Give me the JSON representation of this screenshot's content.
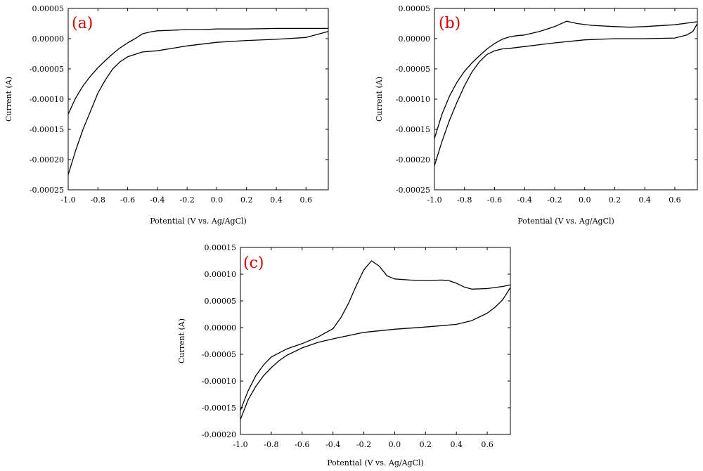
{
  "chart_data": [
    {
      "type": "line",
      "panel_label": "(a)",
      "xlabel": "Potential (V vs. Ag/AgCl)",
      "ylabel": "Current (A)",
      "xlim": [
        -1.0,
        0.75
      ],
      "ylim": [
        -0.00025,
        5e-05
      ],
      "x_ticks": [
        "-1.0",
        "-0.8",
        "-0.6",
        "-0.4",
        "-0.2",
        "0.0",
        "0.2",
        "0.4",
        "0.6"
      ],
      "x_tick_values": [
        -1.0,
        -0.8,
        -0.6,
        -0.4,
        -0.2,
        0.0,
        0.2,
        0.4,
        0.6
      ],
      "y_ticks": [
        "0.00005",
        "0.00000",
        "-0.00005",
        "-0.00010",
        "-0.00015",
        "-0.00020",
        "-0.00025"
      ],
      "y_tick_values": [
        5e-05,
        0.0,
        -5e-05,
        -0.0001,
        -0.00015,
        -0.0002,
        -0.00025
      ],
      "grid": false,
      "series": [
        {
          "x": [
            -1.0,
            -0.95,
            -0.9,
            -0.85,
            -0.8,
            -0.75,
            -0.7,
            -0.65,
            -0.6,
            -0.55,
            -0.5,
            -0.45,
            -0.4,
            -0.3,
            -0.2,
            -0.1,
            0.0,
            0.2,
            0.4,
            0.6,
            0.75
          ],
          "y": [
            -0.000125,
            -9.8e-05,
            -7.8e-05,
            -6.2e-05,
            -4.8e-05,
            -3.6e-05,
            -2.5e-05,
            -1.5e-05,
            -7e-06,
            0.0,
            8e-06,
            1.1e-05,
            1.3e-05,
            1.4e-05,
            1.5e-05,
            1.5e-05,
            1.6e-05,
            1.6e-05,
            1.7e-05,
            1.7e-05,
            1.7e-05
          ]
        },
        {
          "x": [
            0.75,
            0.6,
            0.4,
            0.2,
            0.0,
            -0.2,
            -0.4,
            -0.5,
            -0.55,
            -0.6,
            -0.65,
            -0.7,
            -0.75,
            -0.8,
            -0.85,
            -0.9,
            -0.95,
            -1.0
          ],
          "y": [
            1.2e-05,
            2e-06,
            -1e-06,
            -3e-06,
            -6e-06,
            -1.2e-05,
            -2e-05,
            -2.2e-05,
            -2.6e-05,
            -3e-05,
            -3.8e-05,
            -5e-05,
            -6.8e-05,
            -9e-05,
            -0.00012,
            -0.00015,
            -0.000185,
            -0.000225
          ]
        }
      ]
    },
    {
      "type": "line",
      "panel_label": "(b)",
      "xlabel": "Potential (V vs. Ag/AgCl)",
      "ylabel": "Current (A)",
      "xlim": [
        -1.0,
        0.75
      ],
      "ylim": [
        -0.00025,
        5e-05
      ],
      "x_ticks": [
        "-1.0",
        "-0.8",
        "-0.6",
        "-0.4",
        "-0.2",
        "0.0",
        "0.2",
        "0.4",
        "0.6"
      ],
      "x_tick_values": [
        -1.0,
        -0.8,
        -0.6,
        -0.4,
        -0.2,
        0.0,
        0.2,
        0.4,
        0.6
      ],
      "y_ticks": [
        "0.00005",
        "0.00000",
        "-0.00005",
        "-0.00010",
        "-0.00015",
        "-0.00020",
        "-0.00025"
      ],
      "y_tick_values": [
        5e-05,
        0.0,
        -5e-05,
        -0.0001,
        -0.00015,
        -0.0002,
        -0.00025
      ],
      "grid": false,
      "series": [
        {
          "x": [
            -1.0,
            -0.95,
            -0.9,
            -0.85,
            -0.8,
            -0.75,
            -0.7,
            -0.65,
            -0.6,
            -0.55,
            -0.5,
            -0.45,
            -0.4,
            -0.3,
            -0.2,
            -0.12,
            -0.05,
            0.05,
            0.2,
            0.3,
            0.4,
            0.6,
            0.75
          ],
          "y": [
            -0.000165,
            -0.000125,
            -9.5e-05,
            -7.2e-05,
            -5.4e-05,
            -4e-05,
            -2.8e-05,
            -1.7e-05,
            -8e-06,
            -1e-06,
            3e-06,
            5e-06,
            6e-06,
            1.2e-05,
            2e-05,
            2.9e-05,
            2.5e-05,
            2.2e-05,
            2e-05,
            1.9e-05,
            2e-05,
            2.3e-05,
            2.8e-05
          ]
        },
        {
          "x": [
            0.75,
            0.72,
            0.68,
            0.6,
            0.4,
            0.2,
            0.0,
            -0.2,
            -0.4,
            -0.5,
            -0.55,
            -0.6,
            -0.65,
            -0.7,
            -0.75,
            -0.8,
            -0.85,
            -0.9,
            -0.95,
            -1.0
          ],
          "y": [
            2.5e-05,
            1.2e-05,
            6e-06,
            1e-06,
            0.0,
            0.0,
            -2e-06,
            -7e-06,
            -1.3e-05,
            -1.6e-05,
            -1.7e-05,
            -2e-05,
            -2.6e-05,
            -3.8e-05,
            -5.5e-05,
            -7.8e-05,
            -0.000105,
            -0.000135,
            -0.00017,
            -0.00021
          ]
        }
      ]
    },
    {
      "type": "line",
      "panel_label": "(c)",
      "xlabel": "Potential (V vs. Ag/AgCl)",
      "ylabel": "Current (A)",
      "xlim": [
        -1.0,
        0.75
      ],
      "ylim": [
        -0.0002,
        0.00015
      ],
      "x_ticks": [
        "-1.0",
        "-0.8",
        "-0.6",
        "-0.4",
        "-0.2",
        "0.0",
        "0.2",
        "0.4",
        "0.6"
      ],
      "x_tick_values": [
        -1.0,
        -0.8,
        -0.6,
        -0.4,
        -0.2,
        0.0,
        0.2,
        0.4,
        0.6
      ],
      "y_ticks": [
        "0.00015",
        "0.00010",
        "0.00005",
        "0.00000",
        "-0.00005",
        "-0.00010",
        "-0.00015",
        "-0.00020"
      ],
      "y_tick_values": [
        0.00015,
        0.0001,
        5e-05,
        0.0,
        -5e-05,
        -0.0001,
        -0.00015,
        -0.0002
      ],
      "grid": false,
      "series": [
        {
          "x": [
            -1.0,
            -0.95,
            -0.9,
            -0.85,
            -0.8,
            -0.7,
            -0.6,
            -0.5,
            -0.4,
            -0.35,
            -0.3,
            -0.25,
            -0.2,
            -0.15,
            -0.1,
            -0.05,
            0.0,
            0.1,
            0.2,
            0.3,
            0.35,
            0.4,
            0.45,
            0.5,
            0.6,
            0.7,
            0.75
          ],
          "y": [
            -0.000155,
            -0.000118,
            -9e-05,
            -7e-05,
            -5.5e-05,
            -4e-05,
            -3e-05,
            -1.8e-05,
            -2e-06,
            1.8e-05,
            4.5e-05,
            7.8e-05,
            0.000108,
            0.000125,
            0.000115,
            9.7e-05,
            9.1e-05,
            8.9e-05,
            8.8e-05,
            8.9e-05,
            8.8e-05,
            8.3e-05,
            7.6e-05,
            7.2e-05,
            7.3e-05,
            7.7e-05,
            8e-05
          ]
        },
        {
          "x": [
            0.75,
            0.7,
            0.65,
            0.6,
            0.5,
            0.4,
            0.2,
            0.0,
            -0.2,
            -0.4,
            -0.5,
            -0.6,
            -0.7,
            -0.75,
            -0.8,
            -0.85,
            -0.9,
            -0.95,
            -1.0
          ],
          "y": [
            7.5e-05,
            5.2e-05,
            3.8e-05,
            2.7e-05,
            1.3e-05,
            6e-06,
            1e-06,
            -3e-06,
            -9e-06,
            -2.1e-05,
            -2.8e-05,
            -3.8e-05,
            -5.2e-05,
            -6.2e-05,
            -7.5e-05,
            -9e-05,
            -0.00011,
            -0.000135,
            -0.000172
          ]
        }
      ]
    }
  ]
}
